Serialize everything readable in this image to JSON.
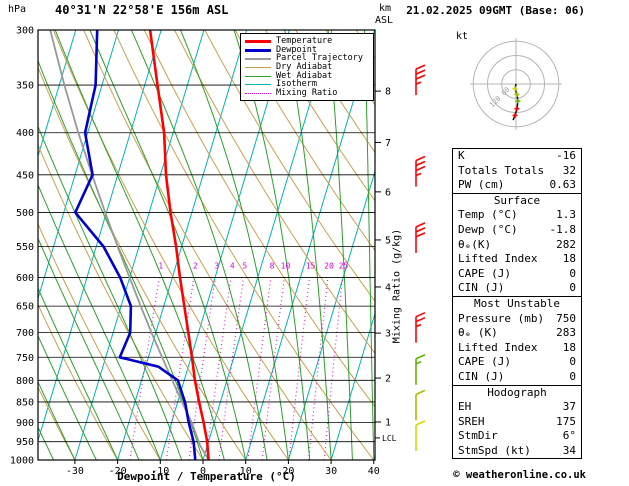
{
  "header": {
    "pressure_unit_label": "hPa",
    "station_title": "40°31'N 22°58'E 156m ASL",
    "altitude_unit_top": "km",
    "altitude_unit_bottom": "ASL",
    "datetime_title": "21.02.2025 09GMT (Base: 06)"
  },
  "axes": {
    "pressure_ticks_hpa": [
      300,
      350,
      400,
      450,
      500,
      550,
      600,
      650,
      700,
      750,
      800,
      850,
      900,
      950,
      1000
    ],
    "temp_ticks_c": [
      -30,
      -20,
      -10,
      0,
      10,
      20,
      30,
      40
    ],
    "km_ticks": [
      {
        "label": "8",
        "p_hpa": 356
      },
      {
        "label": "7",
        "p_hpa": 411
      },
      {
        "label": "6",
        "p_hpa": 472
      },
      {
        "label": "5",
        "p_hpa": 540
      },
      {
        "label": "4",
        "p_hpa": 616
      },
      {
        "label": "3",
        "p_hpa": 701
      },
      {
        "label": "2",
        "p_hpa": 795
      },
      {
        "label": "1",
        "p_hpa": 899
      }
    ],
    "lcl_marker": {
      "label": "LCL",
      "p_hpa": 940
    },
    "x_axis_title": "Dewpoint / Temperature (°C)",
    "right_axis_title": "Mixing Ratio (g/kg)"
  },
  "legend": {
    "items": [
      {
        "label": "Temperature",
        "color": "#ff0000",
        "weight": 3,
        "style": "solid"
      },
      {
        "label": "Dewpoint",
        "color": "#0000cc",
        "weight": 3,
        "style": "solid"
      },
      {
        "label": "Parcel Trajectory",
        "color": "#999999",
        "weight": 2,
        "style": "solid"
      },
      {
        "label": "Dry Adiabat",
        "color": "#c8a050",
        "weight": 1,
        "style": "solid"
      },
      {
        "label": "Wet Adiabat",
        "color": "#2ca02c",
        "weight": 1,
        "style": "solid"
      },
      {
        "label": "Isotherm",
        "color": "#00b4b4",
        "weight": 1,
        "style": "solid"
      },
      {
        "label": "Mixing Ratio",
        "color": "#e000e0",
        "weight": 1,
        "style": "dotted"
      }
    ]
  },
  "chart_data": {
    "type": "line",
    "subtype": "skew-t-log-p",
    "pressure_range_hpa": [
      300,
      1000
    ],
    "temp_axis_range_c": [
      -40,
      40
    ],
    "isotherm_interval_c": 10,
    "dry_adiabat_interval_c": 10,
    "wet_adiabat_interval_c": 5,
    "mixing_ratio_lines_gkg": [
      1,
      2,
      3,
      4,
      5,
      8,
      10,
      15,
      20,
      25
    ],
    "series": [
      {
        "name": "Temperature",
        "points_p_t": [
          [
            1000,
            1.3
          ],
          [
            950,
            -0.3
          ],
          [
            900,
            -2.5
          ],
          [
            850,
            -5.0
          ],
          [
            800,
            -7.5
          ],
          [
            750,
            -9.8
          ],
          [
            700,
            -12.4
          ],
          [
            650,
            -15.2
          ],
          [
            600,
            -18.2
          ],
          [
            550,
            -21.3
          ],
          [
            500,
            -25.0
          ],
          [
            450,
            -28.7
          ],
          [
            400,
            -32.1
          ],
          [
            350,
            -37.0
          ],
          [
            300,
            -42.6
          ]
        ]
      },
      {
        "name": "Dewpoint",
        "points_p_t": [
          [
            1000,
            -1.8
          ],
          [
            950,
            -3.5
          ],
          [
            900,
            -6.0
          ],
          [
            850,
            -8.3
          ],
          [
            800,
            -11.5
          ],
          [
            770,
            -17.0
          ],
          [
            750,
            -26.7
          ],
          [
            700,
            -26.0
          ],
          [
            650,
            -27.7
          ],
          [
            600,
            -32.2
          ],
          [
            550,
            -38.3
          ],
          [
            500,
            -47.3
          ],
          [
            450,
            -45.9
          ],
          [
            400,
            -50.6
          ],
          [
            350,
            -51.5
          ],
          [
            300,
            -55.0
          ]
        ]
      },
      {
        "name": "Parcel Trajectory",
        "points_p_t": [
          [
            1000,
            1.3
          ],
          [
            960,
            -1.7
          ],
          [
            900,
            -5.3
          ],
          [
            850,
            -9.0
          ],
          [
            800,
            -12.8
          ],
          [
            750,
            -16.8
          ],
          [
            700,
            -21.0
          ],
          [
            650,
            -25.4
          ],
          [
            600,
            -30.0
          ],
          [
            550,
            -35.0
          ],
          [
            500,
            -40.3
          ],
          [
            450,
            -46.0
          ],
          [
            400,
            -52.2
          ],
          [
            350,
            -58.8
          ],
          [
            300,
            -66.0
          ]
        ]
      }
    ]
  },
  "wind_barbs": [
    {
      "p_hpa": 360,
      "speed_kt": 35,
      "color": "#ff0000"
    },
    {
      "p_hpa": 465,
      "speed_kt": 35,
      "color": "#ff0000"
    },
    {
      "p_hpa": 560,
      "speed_kt": 30,
      "color": "#ff0000"
    },
    {
      "p_hpa": 720,
      "speed_kt": 25,
      "color": "#ff0000"
    },
    {
      "p_hpa": 810,
      "speed_kt": 15,
      "color": "#60b400"
    },
    {
      "p_hpa": 895,
      "speed_kt": 10,
      "color": "#a8c000"
    },
    {
      "p_hpa": 975,
      "speed_kt": 10,
      "color": "#d8d800"
    }
  ],
  "hodograph": {
    "unit_label": "kt",
    "rings_kt": [
      15,
      30,
      45
    ],
    "axis_labels": [
      "60",
      "120"
    ],
    "trace_kt": [
      [
        -1,
        -5
      ],
      [
        1,
        -11
      ],
      [
        2,
        -18
      ],
      [
        1,
        -26
      ],
      [
        -1,
        -33
      ],
      [
        -3,
        -38
      ]
    ],
    "level_markers": [
      {
        "u": -1,
        "v": -5,
        "color": "#d8d800"
      },
      {
        "u": 1,
        "v": -11,
        "color": "#a8c000"
      },
      {
        "u": 2,
        "v": -18,
        "color": "#60b400"
      },
      {
        "u": 1,
        "v": -26,
        "color": "#ff0000"
      },
      {
        "u": -1,
        "v": -33,
        "color": "#ff0000"
      }
    ]
  },
  "panel": {
    "stats": {
      "rows": [
        {
          "label": "K",
          "value": "-16"
        },
        {
          "label": "Totals Totals",
          "value": "32"
        },
        {
          "label": "PW (cm)",
          "value": "0.63"
        }
      ]
    },
    "surface": {
      "title": "Surface",
      "rows": [
        {
          "label": "Temp (°C)",
          "value": "1.3"
        },
        {
          "label": "Dewp (°C)",
          "value": "-1.8"
        },
        {
          "label": "θₑ(K)",
          "value": "282"
        },
        {
          "label": "Lifted Index",
          "value": "18"
        },
        {
          "label": "CAPE (J)",
          "value": "0"
        },
        {
          "label": "CIN (J)",
          "value": "0"
        }
      ]
    },
    "most_unstable": {
      "title": "Most Unstable",
      "rows": [
        {
          "label": "Pressure (mb)",
          "value": "750"
        },
        {
          "label": "θₑ (K)",
          "value": "283"
        },
        {
          "label": "Lifted Index",
          "value": "18"
        },
        {
          "label": "CAPE (J)",
          "value": "0"
        },
        {
          "label": "CIN (J)",
          "value": "0"
        }
      ]
    },
    "hodograph_stats": {
      "title": "Hodograph",
      "rows": [
        {
          "label": "EH",
          "value": "37"
        },
        {
          "label": "SREH",
          "value": "175"
        },
        {
          "label": "StmDir",
          "value": "6°"
        },
        {
          "label": "StmSpd (kt)",
          "value": "34"
        }
      ]
    }
  },
  "footer": {
    "copyright": "© weatheronline.co.uk"
  },
  "colors": {
    "temperature": "#ff0000",
    "dewpoint": "#0000cc",
    "parcel": "#999999",
    "dry_adiabat": "#c8a050",
    "wet_adiabat": "#2ca02c",
    "isotherm": "#00b4b4",
    "mixing_ratio": "#e000e0",
    "grid": "#000000"
  }
}
